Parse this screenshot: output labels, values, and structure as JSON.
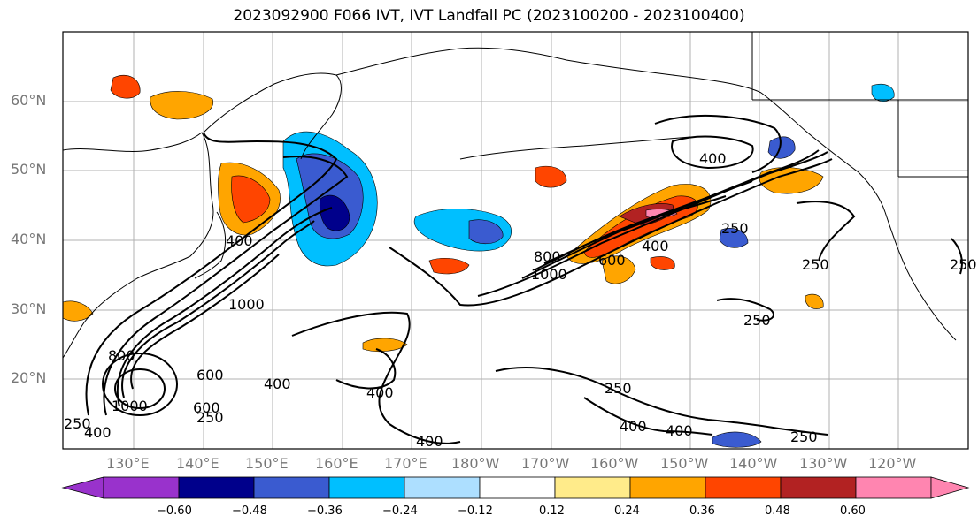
{
  "title": "2023092900 F066 IVT, IVT Landfall PC (2023100200 - 2023100400)",
  "lat_labels": [
    "60°N",
    "50°N",
    "40°N",
    "30°N",
    "20°N"
  ],
  "lon_labels": [
    "130°E",
    "140°E",
    "150°E",
    "160°E",
    "170°E",
    "180°W",
    "170°W",
    "160°W",
    "150°W",
    "140°W",
    "130°W",
    "120°W"
  ],
  "colorbar": {
    "colors": [
      "#9932CC",
      "#00008B",
      "#3A5BD0",
      "#00BFFF",
      "#ADDFFF",
      "#FFFFFF",
      "#FFEB8A",
      "#FFA500",
      "#FF4500",
      "#B22222",
      "#FF85B0"
    ],
    "tick_labels": [
      "−0.60",
      "−0.48",
      "−0.36",
      "−0.24",
      "−0.12",
      "0.12",
      "0.24",
      "0.36",
      "0.48",
      "0.60"
    ]
  },
  "contour_labels": [
    "400",
    "400",
    "1000",
    "800",
    "600",
    "1000",
    "600",
    "400",
    "250",
    "400",
    "400",
    "800",
    "1000",
    "600",
    "400",
    "250",
    "250",
    "250",
    "250",
    "400",
    "400",
    "250",
    "250",
    "250",
    "400"
  ]
}
